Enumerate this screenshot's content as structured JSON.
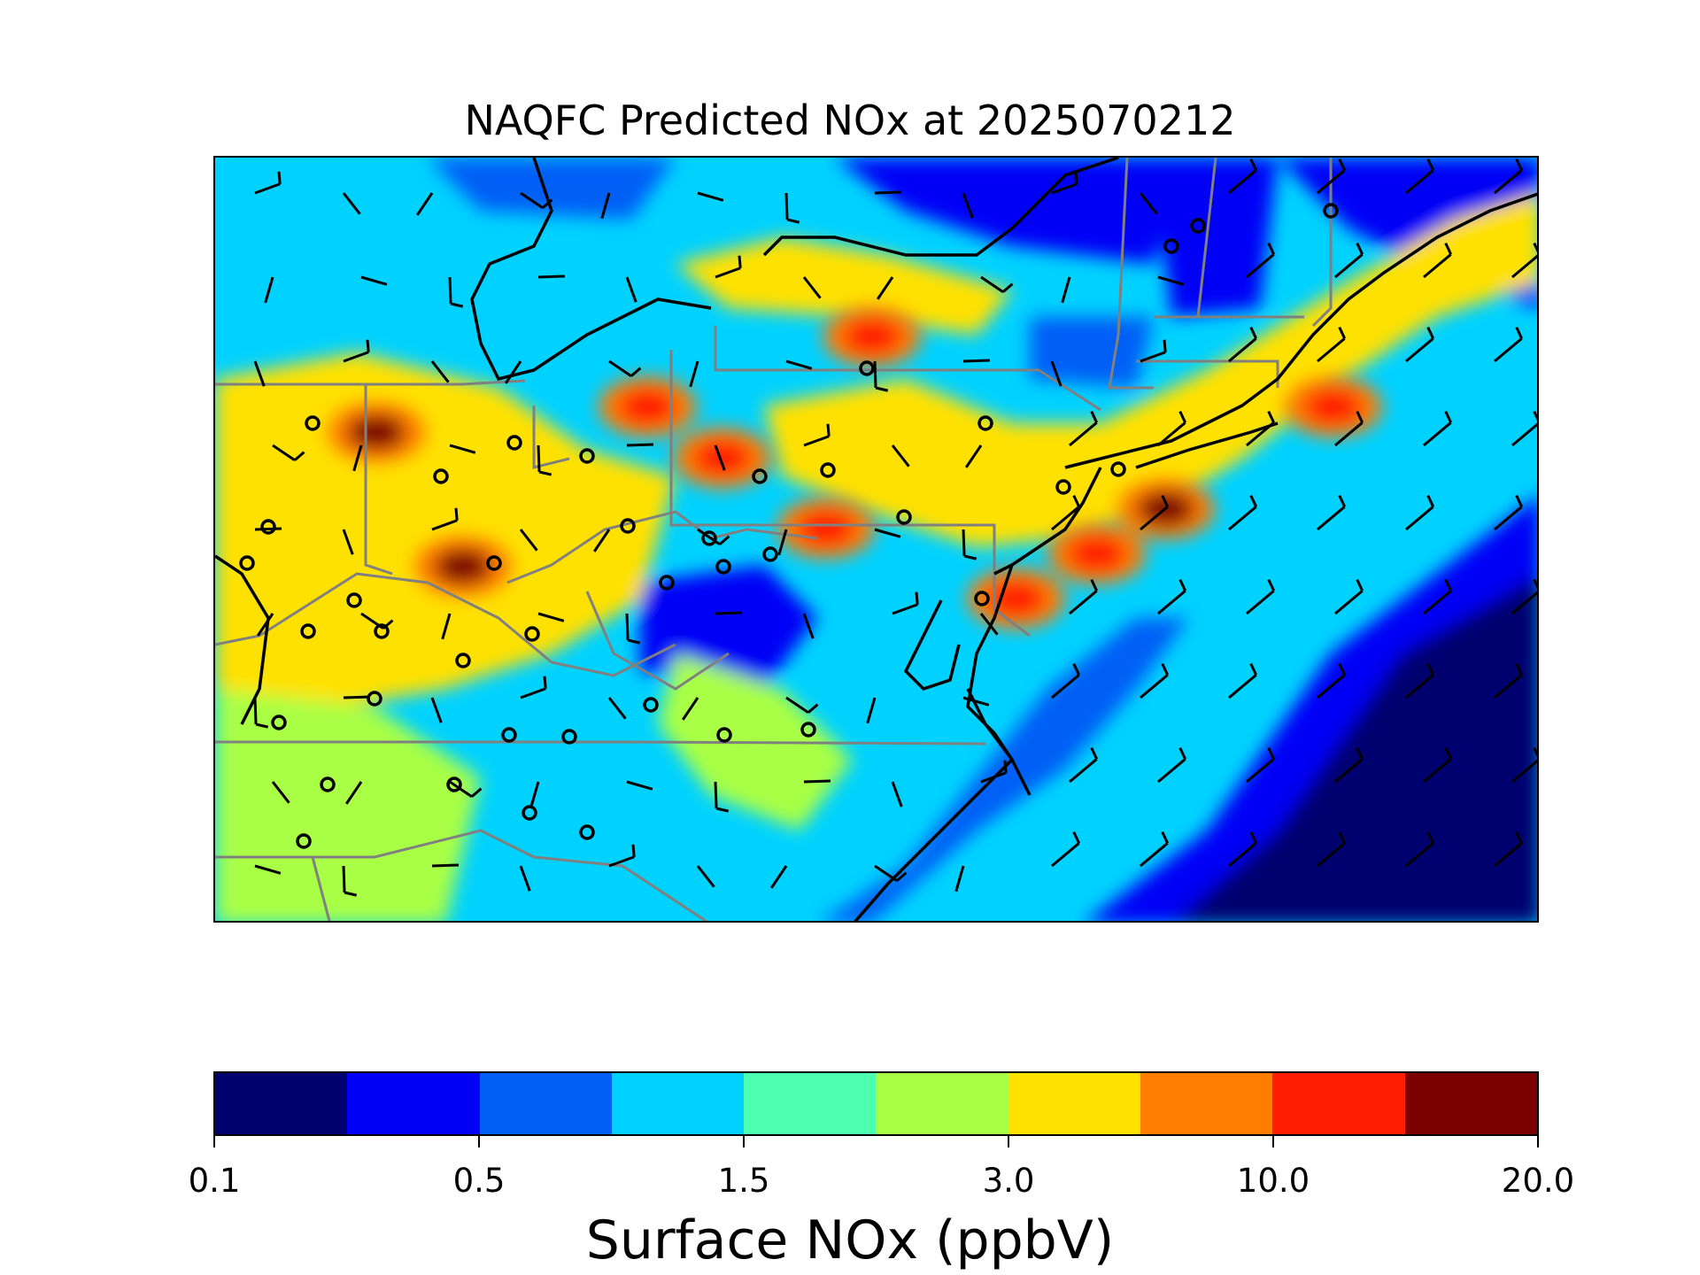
{
  "title": "NAQFC Predicted NOx at 2025070212",
  "colorbar": {
    "label": "Surface NOx (ppbV)",
    "ticks": [
      "0.1",
      "0.5",
      "1.5",
      "3.0",
      "10.0",
      "20.0"
    ],
    "colors": [
      "#00006e",
      "#0000f5",
      "#005ff5",
      "#00d2ff",
      "#4dffb0",
      "#a9ff45",
      "#ffe100",
      "#ff7d00",
      "#ff1e00",
      "#7d0000"
    ]
  },
  "map": {
    "lon_range": [
      -90.5,
      -67.5
    ],
    "lat_range": [
      34.2,
      46.2
    ],
    "field": "Surface NOx (ppbV)",
    "hotspots": [
      {
        "lon": -74.0,
        "lat": 40.7,
        "value": 20.0
      },
      {
        "lon": -75.2,
        "lat": 40.0,
        "value": 12.0
      },
      {
        "lon": -71.1,
        "lat": 42.3,
        "value": 12.0
      },
      {
        "lon": -76.6,
        "lat": 39.3,
        "value": 10.0
      },
      {
        "lon": -79.9,
        "lat": 40.4,
        "value": 10.0
      },
      {
        "lon": -83.0,
        "lat": 42.3,
        "value": 12.0
      },
      {
        "lon": -87.7,
        "lat": 41.9,
        "value": 20.0
      },
      {
        "lon": -86.2,
        "lat": 39.8,
        "value": 20.0
      },
      {
        "lon": -81.7,
        "lat": 41.5,
        "value": 10.0
      },
      {
        "lon": -79.1,
        "lat": 43.4,
        "value": 10.0
      }
    ]
  },
  "icons": {
    "wind_barb": "wind-barb-icon",
    "station": "station-circle-icon"
  }
}
